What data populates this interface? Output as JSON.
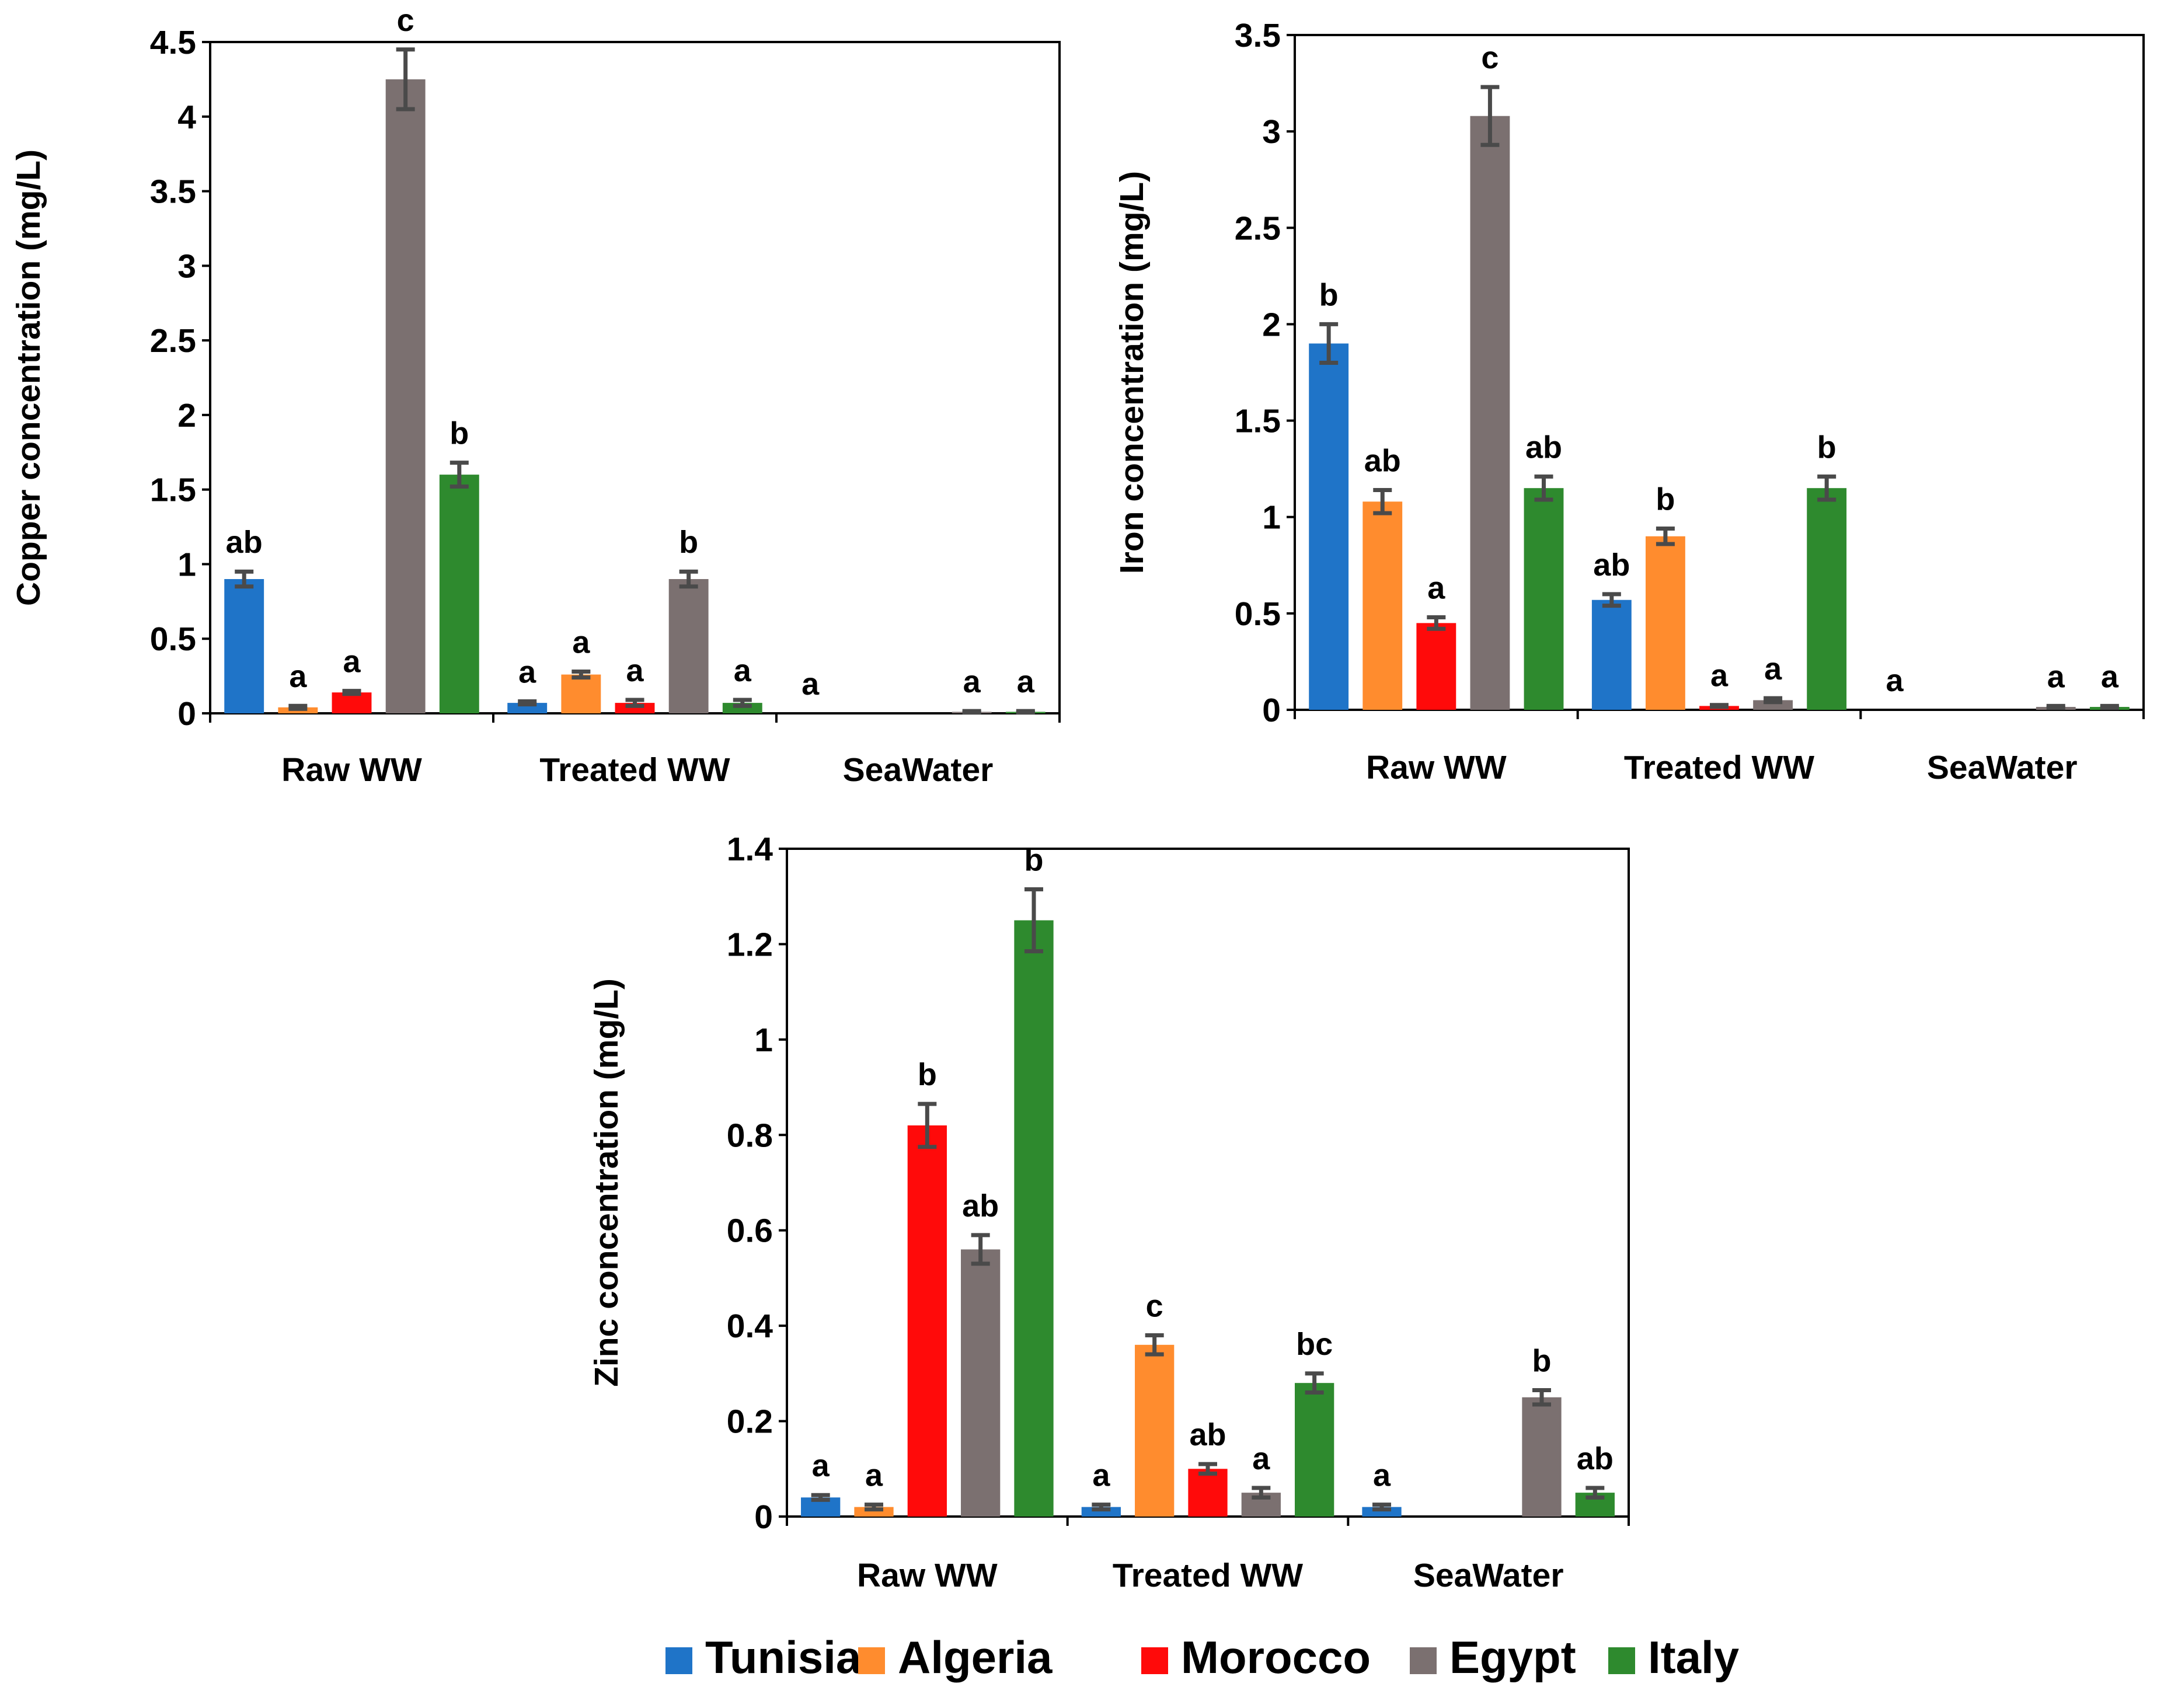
{
  "colors": {
    "Tunisia": "#1f74c8",
    "Algeria": "#ff8c2e",
    "Morocco": "#ff0a0a",
    "Egypt": "#7b7070",
    "Italy": "#2e8a2e"
  },
  "legend": [
    "Tunisia",
    "Algeria",
    "Morocco",
    "Egypt",
    "Italy"
  ],
  "chart_data": [
    {
      "id": "copper",
      "type": "bar",
      "title": "",
      "ylabel": "Copper concentration (mg/L)",
      "ylim": [
        0,
        4.5
      ],
      "yticks": [
        0,
        0.5,
        1,
        1.5,
        2,
        2.5,
        3,
        3.5,
        4,
        4.5
      ],
      "ytick_labels": [
        "0",
        "0.5",
        "1",
        "1.5",
        "2",
        "2.5",
        "3",
        "3.5",
        "4",
        "4.5"
      ],
      "categories": [
        "Raw WW",
        "Treated WW",
        "SeaWater"
      ],
      "series": [
        {
          "name": "Tunisia",
          "values": [
            0.9,
            0.07,
            0
          ],
          "errors": [
            0.05,
            0.01,
            0
          ],
          "labels": [
            "ab",
            "a",
            "a"
          ]
        },
        {
          "name": "Algeria",
          "values": [
            0.04,
            0.26,
            0
          ],
          "errors": [
            0.01,
            0.02,
            0
          ],
          "labels": [
            "a",
            "a",
            ""
          ]
        },
        {
          "name": "Morocco",
          "values": [
            0.14,
            0.07,
            0
          ],
          "errors": [
            0.01,
            0.02,
            0
          ],
          "labels": [
            "a",
            "a",
            ""
          ]
        },
        {
          "name": "Egypt",
          "values": [
            4.25,
            0.9,
            0.01
          ],
          "errors": [
            0.2,
            0.05,
            0.005
          ],
          "labels": [
            "c",
            "b",
            "a"
          ]
        },
        {
          "name": "Italy",
          "values": [
            1.6,
            0.07,
            0.01
          ],
          "errors": [
            0.08,
            0.02,
            0.005
          ],
          "labels": [
            "b",
            "a",
            "a"
          ]
        }
      ]
    },
    {
      "id": "iron",
      "type": "bar",
      "title": "",
      "ylabel": "Iron concentration (mg/L)",
      "ylim": [
        0,
        3.5
      ],
      "yticks": [
        0,
        0.5,
        1,
        1.5,
        2,
        2.5,
        3,
        3.5
      ],
      "ytick_labels": [
        "0",
        "0.5",
        "1",
        "1.5",
        "2",
        "2.5",
        "3",
        "3.5"
      ],
      "categories": [
        "Raw WW",
        "Treated WW",
        "SeaWater"
      ],
      "series": [
        {
          "name": "Tunisia",
          "values": [
            1.9,
            0.57,
            0
          ],
          "errors": [
            0.1,
            0.03,
            0
          ],
          "labels": [
            "b",
            "ab",
            "a"
          ]
        },
        {
          "name": "Algeria",
          "values": [
            1.08,
            0.9,
            0
          ],
          "errors": [
            0.06,
            0.04,
            0
          ],
          "labels": [
            "ab",
            "b",
            ""
          ]
        },
        {
          "name": "Morocco",
          "values": [
            0.45,
            0.02,
            0
          ],
          "errors": [
            0.03,
            0.005,
            0
          ],
          "labels": [
            "a",
            "a",
            ""
          ]
        },
        {
          "name": "Egypt",
          "values": [
            3.08,
            0.05,
            0.015
          ],
          "errors": [
            0.15,
            0.01,
            0.005
          ],
          "labels": [
            "c",
            "a",
            "a"
          ]
        },
        {
          "name": "Italy",
          "values": [
            1.15,
            1.15,
            0.015
          ],
          "errors": [
            0.06,
            0.06,
            0.005
          ],
          "labels": [
            "ab",
            "b",
            "a"
          ]
        }
      ]
    },
    {
      "id": "zinc",
      "type": "bar",
      "title": "",
      "ylabel": "Zinc concentration (mg/L)",
      "ylim": [
        0,
        1.4
      ],
      "yticks": [
        0,
        0.2,
        0.4,
        0.6,
        0.8,
        1,
        1.2,
        1.4
      ],
      "ytick_labels": [
        "0",
        "0.2",
        "0.4",
        "0.6",
        "0.8",
        "1",
        "1.2",
        "1.4"
      ],
      "categories": [
        "Raw WW",
        "Treated WW",
        "SeaWater"
      ],
      "series": [
        {
          "name": "Tunisia",
          "values": [
            0.04,
            0.02,
            0.02
          ],
          "errors": [
            0.005,
            0.005,
            0.005
          ],
          "labels": [
            "a",
            "a",
            "a"
          ]
        },
        {
          "name": "Algeria",
          "values": [
            0.02,
            0.36,
            0
          ],
          "errors": [
            0.005,
            0.02,
            0
          ],
          "labels": [
            "a",
            "c",
            ""
          ]
        },
        {
          "name": "Morocco",
          "values": [
            0.82,
            0.1,
            0
          ],
          "errors": [
            0.045,
            0.01,
            0
          ],
          "labels": [
            "b",
            "ab",
            ""
          ]
        },
        {
          "name": "Egypt",
          "values": [
            0.56,
            0.05,
            0.25
          ],
          "errors": [
            0.03,
            0.01,
            0.015
          ],
          "labels": [
            "ab",
            "a",
            "b"
          ]
        },
        {
          "name": "Italy",
          "values": [
            1.25,
            0.28,
            0.05
          ],
          "errors": [
            0.065,
            0.02,
            0.01
          ],
          "labels": [
            "b",
            "bc",
            "ab"
          ]
        }
      ]
    }
  ]
}
